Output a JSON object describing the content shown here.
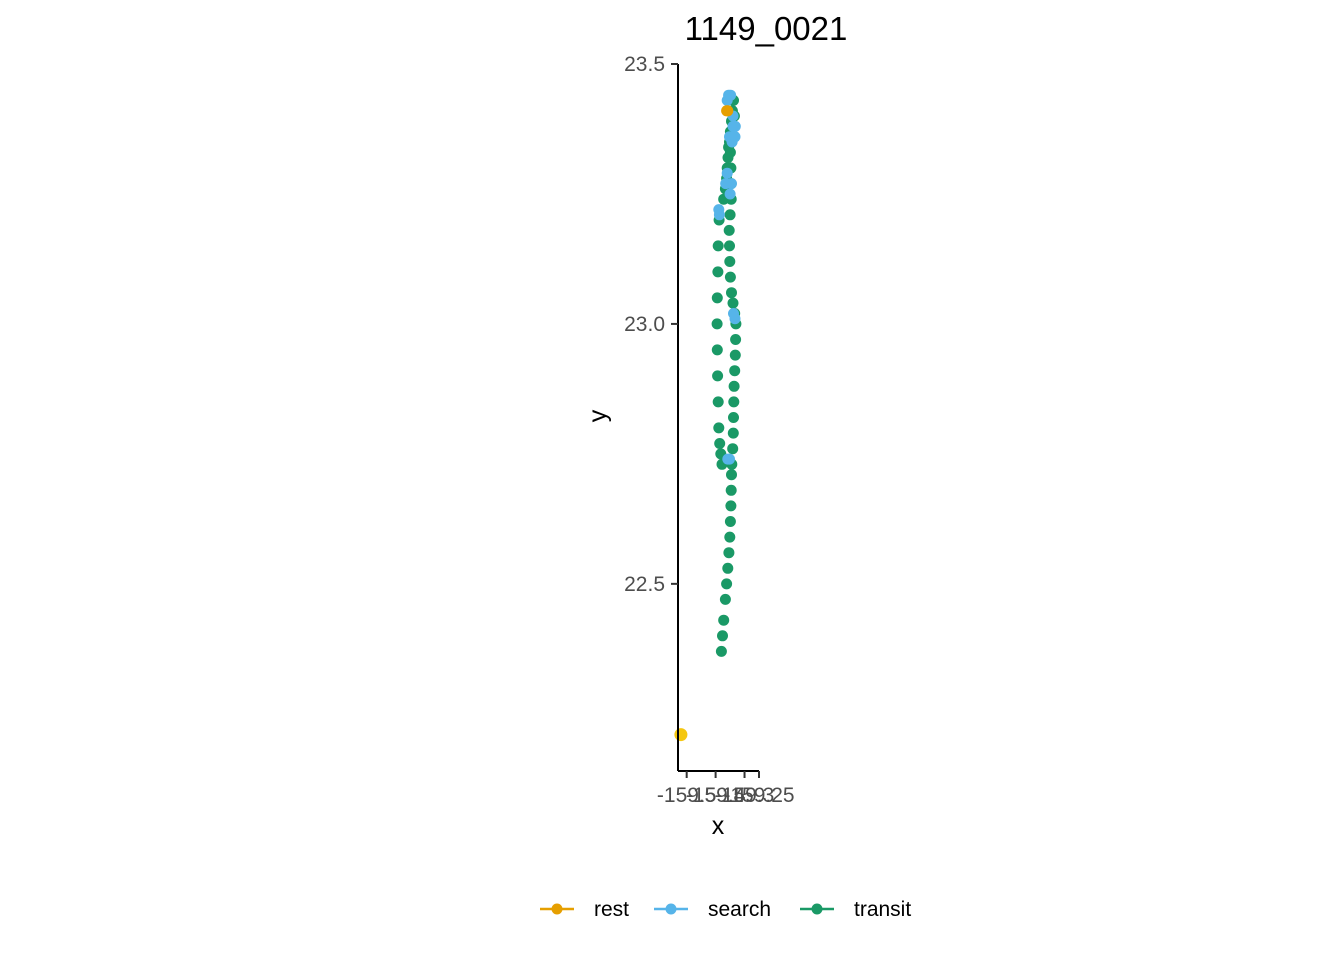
{
  "chart_data": {
    "type": "scatter",
    "title": "1149_0021",
    "xlabel": "x",
    "ylabel": "y",
    "xlim": [
      -159.53,
      -159.25
    ],
    "ylim": [
      22.14,
      23.5
    ],
    "x_ticks": [
      {
        "value": -159.5,
        "label": "-159.5"
      },
      {
        "value": -159.4,
        "label": "-159.4"
      },
      {
        "value": -159.3,
        "label": "-159.3"
      },
      {
        "value": -159.25,
        "label": "-159.25"
      }
    ],
    "y_ticks": [
      {
        "value": 22.5,
        "label": "22.5"
      },
      {
        "value": 23.0,
        "label": "23.0"
      },
      {
        "value": 23.5,
        "label": "23.5"
      }
    ],
    "legend": {
      "position": "bottom",
      "entries": [
        {
          "name": "rest",
          "color": "#E69F00"
        },
        {
          "name": "search",
          "color": "#56B4E9"
        },
        {
          "name": "transit",
          "color": "#1A9966"
        }
      ]
    },
    "start_point": {
      "x": -159.52,
      "y": 22.21,
      "color": "#F5C710"
    },
    "series": [
      {
        "name": "transit",
        "color": "#1A9966",
        "points": [
          [
            -159.38,
            22.37
          ],
          [
            -159.376,
            22.4
          ],
          [
            -159.372,
            22.43
          ],
          [
            -159.366,
            22.47
          ],
          [
            -159.362,
            22.5
          ],
          [
            -159.358,
            22.53
          ],
          [
            -159.354,
            22.56
          ],
          [
            -159.351,
            22.59
          ],
          [
            -159.349,
            22.62
          ],
          [
            -159.347,
            22.65
          ],
          [
            -159.346,
            22.68
          ],
          [
            -159.345,
            22.71
          ],
          [
            -159.344,
            22.73
          ],
          [
            -159.341,
            22.76
          ],
          [
            -159.339,
            22.79
          ],
          [
            -159.338,
            22.82
          ],
          [
            -159.337,
            22.85
          ],
          [
            -159.336,
            22.88
          ],
          [
            -159.334,
            22.91
          ],
          [
            -159.332,
            22.94
          ],
          [
            -159.331,
            22.97
          ],
          [
            -159.33,
            23.0
          ],
          [
            -159.334,
            23.02
          ],
          [
            -159.34,
            23.04
          ],
          [
            -159.345,
            23.06
          ],
          [
            -159.349,
            23.09
          ],
          [
            -159.351,
            23.12
          ],
          [
            -159.352,
            23.15
          ],
          [
            -159.353,
            23.18
          ],
          [
            -159.35,
            23.21
          ],
          [
            -159.346,
            23.24
          ],
          [
            -159.346,
            23.27
          ],
          [
            -159.347,
            23.3
          ],
          [
            -159.349,
            23.33
          ],
          [
            -159.352,
            23.35
          ],
          [
            -159.349,
            23.37
          ],
          [
            -159.345,
            23.39
          ],
          [
            -159.342,
            23.41
          ],
          [
            -159.338,
            23.43
          ],
          [
            -159.335,
            23.4
          ],
          [
            -159.36,
            23.3
          ],
          [
            -159.357,
            23.32
          ],
          [
            -159.355,
            23.34
          ],
          [
            -159.372,
            23.24
          ],
          [
            -159.366,
            23.26
          ],
          [
            -159.362,
            23.28
          ],
          [
            -159.388,
            23.2
          ],
          [
            -159.391,
            23.15
          ],
          [
            -159.392,
            23.1
          ],
          [
            -159.394,
            23.05
          ],
          [
            -159.395,
            23.0
          ],
          [
            -159.394,
            22.95
          ],
          [
            -159.393,
            22.9
          ],
          [
            -159.391,
            22.85
          ],
          [
            -159.389,
            22.8
          ],
          [
            -159.386,
            22.77
          ],
          [
            -159.382,
            22.75
          ],
          [
            -159.378,
            22.73
          ]
        ]
      },
      {
        "name": "search",
        "color": "#56B4E9",
        "points": [
          [
            -159.389,
            23.22
          ],
          [
            -159.387,
            23.21
          ],
          [
            -159.365,
            23.27
          ],
          [
            -159.36,
            23.29
          ],
          [
            -159.345,
            23.27
          ],
          [
            -159.35,
            23.25
          ],
          [
            -159.352,
            23.36
          ],
          [
            -159.343,
            23.35
          ],
          [
            -159.338,
            23.36
          ],
          [
            -159.34,
            23.38
          ],
          [
            -159.34,
            23.4
          ],
          [
            -159.36,
            23.43
          ],
          [
            -159.355,
            23.44
          ],
          [
            -159.348,
            23.44
          ],
          [
            -159.332,
            23.38
          ],
          [
            -159.333,
            23.36
          ],
          [
            -159.333,
            23.01
          ],
          [
            -159.338,
            23.02
          ],
          [
            -159.358,
            22.74
          ],
          [
            -159.352,
            22.74
          ]
        ]
      },
      {
        "name": "rest",
        "color": "#E69F00",
        "points": [
          [
            -159.362,
            23.41
          ],
          [
            -159.358,
            23.41
          ]
        ]
      }
    ]
  }
}
